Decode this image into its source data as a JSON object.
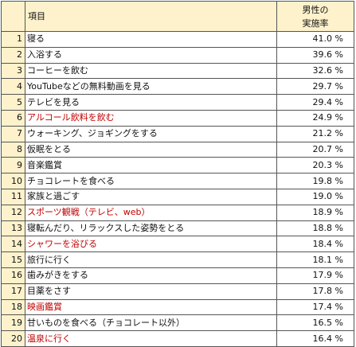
{
  "header": {
    "item_label": "項目",
    "value_label_line1": "男性の",
    "value_label_line2": "実施率"
  },
  "colors": {
    "header_bg": "#fdf2cc",
    "highlight_text": "#c00000",
    "border": "#555555"
  },
  "rows": [
    {
      "rank": "1",
      "item": "寝る",
      "value": "41.0 %",
      "highlight": false
    },
    {
      "rank": "2",
      "item": "入浴する",
      "value": "39.6 %",
      "highlight": false
    },
    {
      "rank": "3",
      "item": "コーヒーを飲む",
      "value": "32.6 %",
      "highlight": false
    },
    {
      "rank": "4",
      "item": "YouTubeなどの無料動画を見る",
      "value": "29.7 %",
      "highlight": false
    },
    {
      "rank": "5",
      "item": "テレビを見る",
      "value": "29.4 %",
      "highlight": false
    },
    {
      "rank": "6",
      "item": "アルコール飲料を飲む",
      "value": "24.9 %",
      "highlight": true
    },
    {
      "rank": "7",
      "item": "ウォーキング、ジョギングをする",
      "value": "21.2 %",
      "highlight": false
    },
    {
      "rank": "8",
      "item": "仮眠をとる",
      "value": "20.7 %",
      "highlight": false
    },
    {
      "rank": "9",
      "item": "音楽鑑賞",
      "value": "20.3 %",
      "highlight": false
    },
    {
      "rank": "10",
      "item": "チョコレートを食べる",
      "value": "19.8 %",
      "highlight": false
    },
    {
      "rank": "11",
      "item": "家族と過ごす",
      "value": "19.0 %",
      "highlight": false
    },
    {
      "rank": "12",
      "item": "スポーツ観戦（テレビ、web）",
      "value": "18.9 %",
      "highlight": true
    },
    {
      "rank": "13",
      "item": "寝転んだり、リラックスした姿勢をとる",
      "value": "18.8 %",
      "highlight": false
    },
    {
      "rank": "14",
      "item": "シャワーを浴びる",
      "value": "18.4 %",
      "highlight": true
    },
    {
      "rank": "15",
      "item": "旅行に行く",
      "value": "18.1 %",
      "highlight": false
    },
    {
      "rank": "16",
      "item": "歯みがきをする",
      "value": "17.9 %",
      "highlight": false
    },
    {
      "rank": "17",
      "item": "目薬をさす",
      "value": "17.8 %",
      "highlight": false
    },
    {
      "rank": "18",
      "item": "映画鑑賞",
      "value": "17.4 %",
      "highlight": true
    },
    {
      "rank": "19",
      "item": "甘いものを食べる（チョコレート以外）",
      "value": "16.5 %",
      "highlight": false
    },
    {
      "rank": "20",
      "item": "温泉に行く",
      "value": "16.4 %",
      "highlight": true
    }
  ]
}
